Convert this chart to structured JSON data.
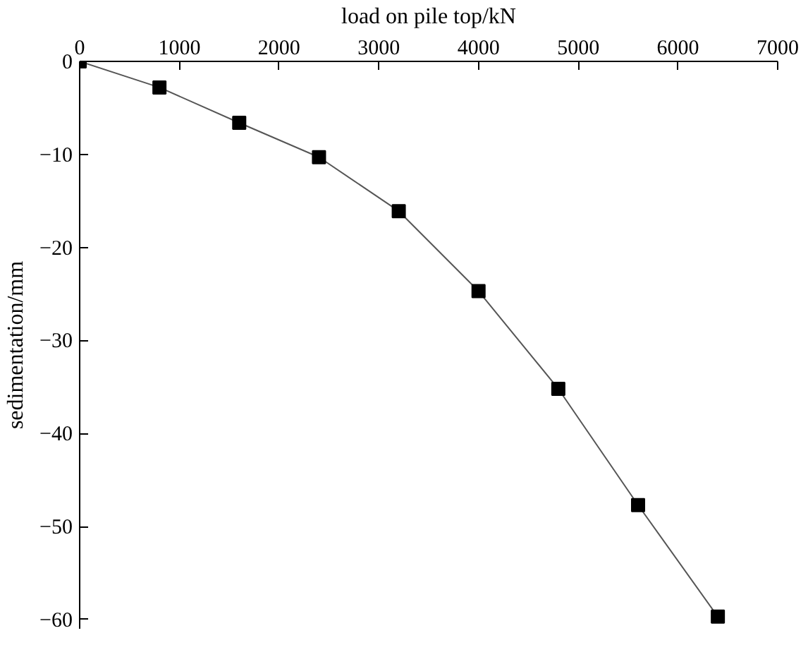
{
  "chart_data": {
    "type": "line",
    "xlabel": "load on pile top/kN",
    "ylabel": "sedimentation/mm",
    "x": [
      0,
      800,
      1600,
      2400,
      3200,
      4000,
      4800,
      5600,
      6400
    ],
    "series": [
      {
        "color": "#000000",
        "values": [
          0,
          -2.8,
          -6.6,
          -10.3,
          -16.1,
          -24.7,
          -35.2,
          -47.7,
          -59.7
        ]
      }
    ],
    "xlim": [
      0,
      7000
    ],
    "xticks": [
      0,
      1000,
      2000,
      3000,
      4000,
      5000,
      6000,
      7000
    ],
    "ylim": [
      -61,
      0
    ],
    "yticks": [
      0,
      -10,
      -20,
      -30,
      -40,
      -50,
      -60
    ],
    "marker": "square",
    "line_style": "solid"
  }
}
